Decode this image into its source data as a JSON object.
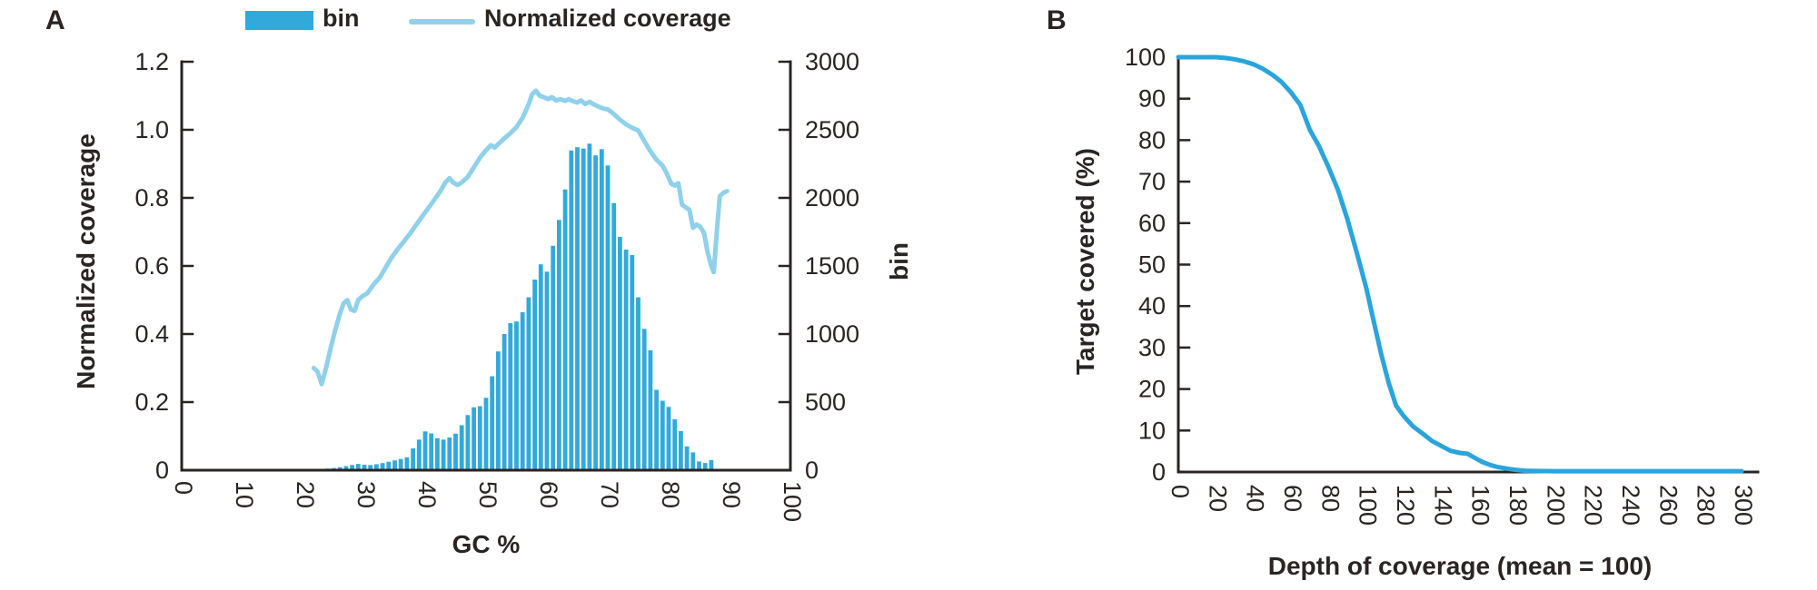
{
  "page": {
    "background": "#ffffff"
  },
  "colors": {
    "bar": "#31a9db",
    "line_a": "#8fd1ea",
    "line_b": "#2ba4dc",
    "text": "#2a2422",
    "axis": "#2a2422"
  },
  "panel_a": {
    "label": "A",
    "legend": {
      "bar_label": "bin",
      "line_label": "Normalized coverage"
    }
  },
  "panel_b": {
    "label": "B"
  },
  "chart_data": [
    {
      "id": "gc-bias-chart",
      "type": "bar",
      "title": "",
      "legend_position": "top",
      "grid": false,
      "x_axis": {
        "label": "GC %",
        "range": [
          0,
          100
        ],
        "ticks": [
          [
            0,
            "0"
          ],
          [
            10,
            "10"
          ],
          [
            20,
            "20"
          ],
          [
            30,
            "30"
          ],
          [
            40,
            "40"
          ],
          [
            50,
            "50"
          ],
          [
            60,
            "60"
          ],
          [
            70,
            "70"
          ],
          [
            80,
            "80"
          ],
          [
            90,
            "90"
          ],
          [
            100,
            "100"
          ]
        ]
      },
      "y_left": {
        "label": "Normalized coverage",
        "range": [
          0,
          1.2
        ],
        "ticks": [
          [
            0,
            "0"
          ],
          [
            0.2,
            "0.2"
          ],
          [
            0.4,
            "0.4"
          ],
          [
            0.6,
            "0.6"
          ],
          [
            0.8,
            "0.8"
          ],
          [
            1.0,
            "1.0"
          ],
          [
            1.2,
            "1.2"
          ]
        ]
      },
      "y_right": {
        "label": "bin",
        "range": [
          0,
          3000
        ],
        "ticks": [
          [
            0,
            "0"
          ],
          [
            500,
            "500"
          ],
          [
            1000,
            "1000"
          ],
          [
            1500,
            "1500"
          ],
          [
            2000,
            "2000"
          ],
          [
            2500,
            "2500"
          ],
          [
            3000,
            "3000"
          ]
        ]
      },
      "series": [
        {
          "name": "bin",
          "type": "bar",
          "axis": "right",
          "points": [
            [
              23,
              8
            ],
            [
              24,
              12
            ],
            [
              25,
              16
            ],
            [
              26,
              22
            ],
            [
              27,
              30
            ],
            [
              28,
              38
            ],
            [
              29,
              46
            ],
            [
              30,
              40
            ],
            [
              31,
              38
            ],
            [
              32,
              44
            ],
            [
              33,
              52
            ],
            [
              34,
              62
            ],
            [
              35,
              72
            ],
            [
              36,
              82
            ],
            [
              37,
              95
            ],
            [
              38,
              160
            ],
            [
              39,
              225
            ],
            [
              40,
              285
            ],
            [
              41,
              270
            ],
            [
              42,
              235
            ],
            [
              43,
              225
            ],
            [
              44,
              240
            ],
            [
              45,
              268
            ],
            [
              46,
              330
            ],
            [
              47,
              405
            ],
            [
              48,
              462
            ],
            [
              49,
              470
            ],
            [
              50,
              532
            ],
            [
              51,
              690
            ],
            [
              52,
              872
            ],
            [
              53,
              1000
            ],
            [
              54,
              1080
            ],
            [
              55,
              1092
            ],
            [
              56,
              1160
            ],
            [
              57,
              1270
            ],
            [
              58,
              1400
            ],
            [
              59,
              1512
            ],
            [
              60,
              1458
            ],
            [
              61,
              1648
            ],
            [
              62,
              1838
            ],
            [
              63,
              2062
            ],
            [
              64,
              2348
            ],
            [
              65,
              2372
            ],
            [
              66,
              2362
            ],
            [
              67,
              2398
            ],
            [
              68,
              2312
            ],
            [
              69,
              2358
            ],
            [
              70,
              2238
            ],
            [
              71,
              1962
            ],
            [
              72,
              1714
            ],
            [
              73,
              1620
            ],
            [
              74,
              1580
            ],
            [
              75,
              1270
            ],
            [
              76,
              1038
            ],
            [
              77,
              880
            ],
            [
              78,
              590
            ],
            [
              79,
              510
            ],
            [
              80,
              465
            ],
            [
              81,
              375
            ],
            [
              82,
              287
            ],
            [
              83,
              175
            ],
            [
              84,
              131
            ],
            [
              85,
              64
            ],
            [
              86,
              53
            ],
            [
              87,
              75
            ],
            [
              88,
              10
            ],
            [
              89,
              5
            ]
          ]
        },
        {
          "name": "Normalized coverage",
          "type": "line",
          "axis": "left",
          "points": [
            [
              21.7,
              0.3
            ],
            [
              22.3,
              0.29
            ],
            [
              23,
              0.253
            ],
            [
              23.7,
              0.3
            ],
            [
              24.5,
              0.36
            ],
            [
              25.2,
              0.41
            ],
            [
              26,
              0.46
            ],
            [
              26.6,
              0.49
            ],
            [
              27.2,
              0.5
            ],
            [
              27.8,
              0.472
            ],
            [
              28.4,
              0.468
            ],
            [
              29,
              0.5
            ],
            [
              29.6,
              0.51
            ],
            [
              30.5,
              0.52
            ],
            [
              31.5,
              0.545
            ],
            [
              32.5,
              0.565
            ],
            [
              33.5,
              0.595
            ],
            [
              34.5,
              0.625
            ],
            [
              35.5,
              0.65
            ],
            [
              36.5,
              0.672
            ],
            [
              37.5,
              0.695
            ],
            [
              38.5,
              0.72
            ],
            [
              39.5,
              0.745
            ],
            [
              40.5,
              0.77
            ],
            [
              41.5,
              0.795
            ],
            [
              42.5,
              0.82
            ],
            [
              43.3,
              0.845
            ],
            [
              44,
              0.858
            ],
            [
              44.6,
              0.845
            ],
            [
              45.3,
              0.838
            ],
            [
              46,
              0.845
            ],
            [
              47,
              0.862
            ],
            [
              48,
              0.89
            ],
            [
              49,
              0.918
            ],
            [
              50,
              0.94
            ],
            [
              50.8,
              0.955
            ],
            [
              51.4,
              0.948
            ],
            [
              52,
              0.958
            ],
            [
              53,
              0.975
            ],
            [
              54,
              0.99
            ],
            [
              55,
              1.008
            ],
            [
              56,
              1.035
            ],
            [
              57,
              1.075
            ],
            [
              57.6,
              1.105
            ],
            [
              58.2,
              1.115
            ],
            [
              58.8,
              1.1
            ],
            [
              59.5,
              1.096
            ],
            [
              60.2,
              1.09
            ],
            [
              60.8,
              1.096
            ],
            [
              61.5,
              1.086
            ],
            [
              62.2,
              1.09
            ],
            [
              63,
              1.085
            ],
            [
              63.6,
              1.09
            ],
            [
              64.3,
              1.084
            ],
            [
              65,
              1.08
            ],
            [
              65.6,
              1.086
            ],
            [
              66.3,
              1.076
            ],
            [
              67,
              1.082
            ],
            [
              67.7,
              1.075
            ],
            [
              68.5,
              1.068
            ],
            [
              69.3,
              1.062
            ],
            [
              70,
              1.06
            ],
            [
              71,
              1.046
            ],
            [
              72,
              1.03
            ],
            [
              73,
              1.016
            ],
            [
              74,
              1.006
            ],
            [
              75,
              0.998
            ],
            [
              76,
              0.967
            ],
            [
              77,
              0.937
            ],
            [
              78,
              0.912
            ],
            [
              79,
              0.895
            ],
            [
              79.8,
              0.868
            ],
            [
              80.4,
              0.842
            ],
            [
              81,
              0.836
            ],
            [
              81.6,
              0.843
            ],
            [
              82.2,
              0.78
            ],
            [
              82.8,
              0.772
            ],
            [
              83.4,
              0.765
            ],
            [
              84,
              0.712
            ],
            [
              84.6,
              0.722
            ],
            [
              85.2,
              0.715
            ],
            [
              85.8,
              0.697
            ],
            [
              86.4,
              0.64
            ],
            [
              87,
              0.6
            ],
            [
              87.4,
              0.582
            ],
            [
              88,
              0.72
            ],
            [
              88.4,
              0.805
            ],
            [
              89,
              0.815
            ],
            [
              89.6,
              0.82
            ]
          ]
        }
      ]
    },
    {
      "id": "depth-of-coverage-chart",
      "type": "line",
      "title": "",
      "grid": false,
      "x_axis": {
        "label": "Depth of coverage (mean = 100)",
        "range": [
          0,
          300
        ],
        "ticks": [
          [
            0,
            "0"
          ],
          [
            20,
            "20"
          ],
          [
            40,
            "40"
          ],
          [
            60,
            "60"
          ],
          [
            80,
            "80"
          ],
          [
            100,
            "100"
          ],
          [
            120,
            "120"
          ],
          [
            140,
            "140"
          ],
          [
            160,
            "160"
          ],
          [
            180,
            "180"
          ],
          [
            200,
            "200"
          ],
          [
            220,
            "220"
          ],
          [
            240,
            "240"
          ],
          [
            260,
            "260"
          ],
          [
            280,
            "280"
          ],
          [
            300,
            "300"
          ]
        ]
      },
      "y_axis": {
        "label": "Target covered (%)",
        "range": [
          0,
          100
        ],
        "ticks": [
          [
            0,
            "0"
          ],
          [
            10,
            "10"
          ],
          [
            20,
            "20"
          ],
          [
            30,
            "30"
          ],
          [
            40,
            "40"
          ],
          [
            50,
            "50"
          ],
          [
            60,
            "60"
          ],
          [
            70,
            "70"
          ],
          [
            80,
            "80"
          ],
          [
            90,
            "90"
          ],
          [
            100,
            "100"
          ]
        ]
      },
      "series": [
        {
          "name": "Target covered (%)",
          "type": "line",
          "points": [
            [
              0,
              100
            ],
            [
              5,
              100
            ],
            [
              10,
              100
            ],
            [
              15,
              100
            ],
            [
              20,
              100
            ],
            [
              25,
              99.8
            ],
            [
              30,
              99.5
            ],
            [
              35,
              99
            ],
            [
              40,
              98.3
            ],
            [
              45,
              97.2
            ],
            [
              50,
              95.8
            ],
            [
              55,
              94
            ],
            [
              60,
              91.5
            ],
            [
              65,
              88.5
            ],
            [
              70,
              82.5
            ],
            [
              75,
              78.5
            ],
            [
              80,
              73.5
            ],
            [
              85,
              68
            ],
            [
              90,
              61
            ],
            [
              95,
              53
            ],
            [
              100,
              44.5
            ],
            [
              104,
              36.5
            ],
            [
              108,
              28.5
            ],
            [
              112,
              21.5
            ],
            [
              116,
              16
            ],
            [
              120,
              13.5
            ],
            [
              125,
              11
            ],
            [
              130,
              9.3
            ],
            [
              135,
              7.5
            ],
            [
              140,
              6.3
            ],
            [
              145,
              5.1
            ],
            [
              150,
              4.6
            ],
            [
              154,
              4.4
            ],
            [
              158,
              3.4
            ],
            [
              162,
              2.4
            ],
            [
              166,
              1.7
            ],
            [
              170,
              1.2
            ],
            [
              175,
              0.8
            ],
            [
              180,
              0.5
            ],
            [
              185,
              0.3
            ],
            [
              190,
              0.25
            ],
            [
              200,
              0.2
            ],
            [
              220,
              0.2
            ],
            [
              240,
              0.2
            ],
            [
              260,
              0.2
            ],
            [
              280,
              0.2
            ],
            [
              300,
              0.2
            ]
          ]
        }
      ]
    }
  ]
}
